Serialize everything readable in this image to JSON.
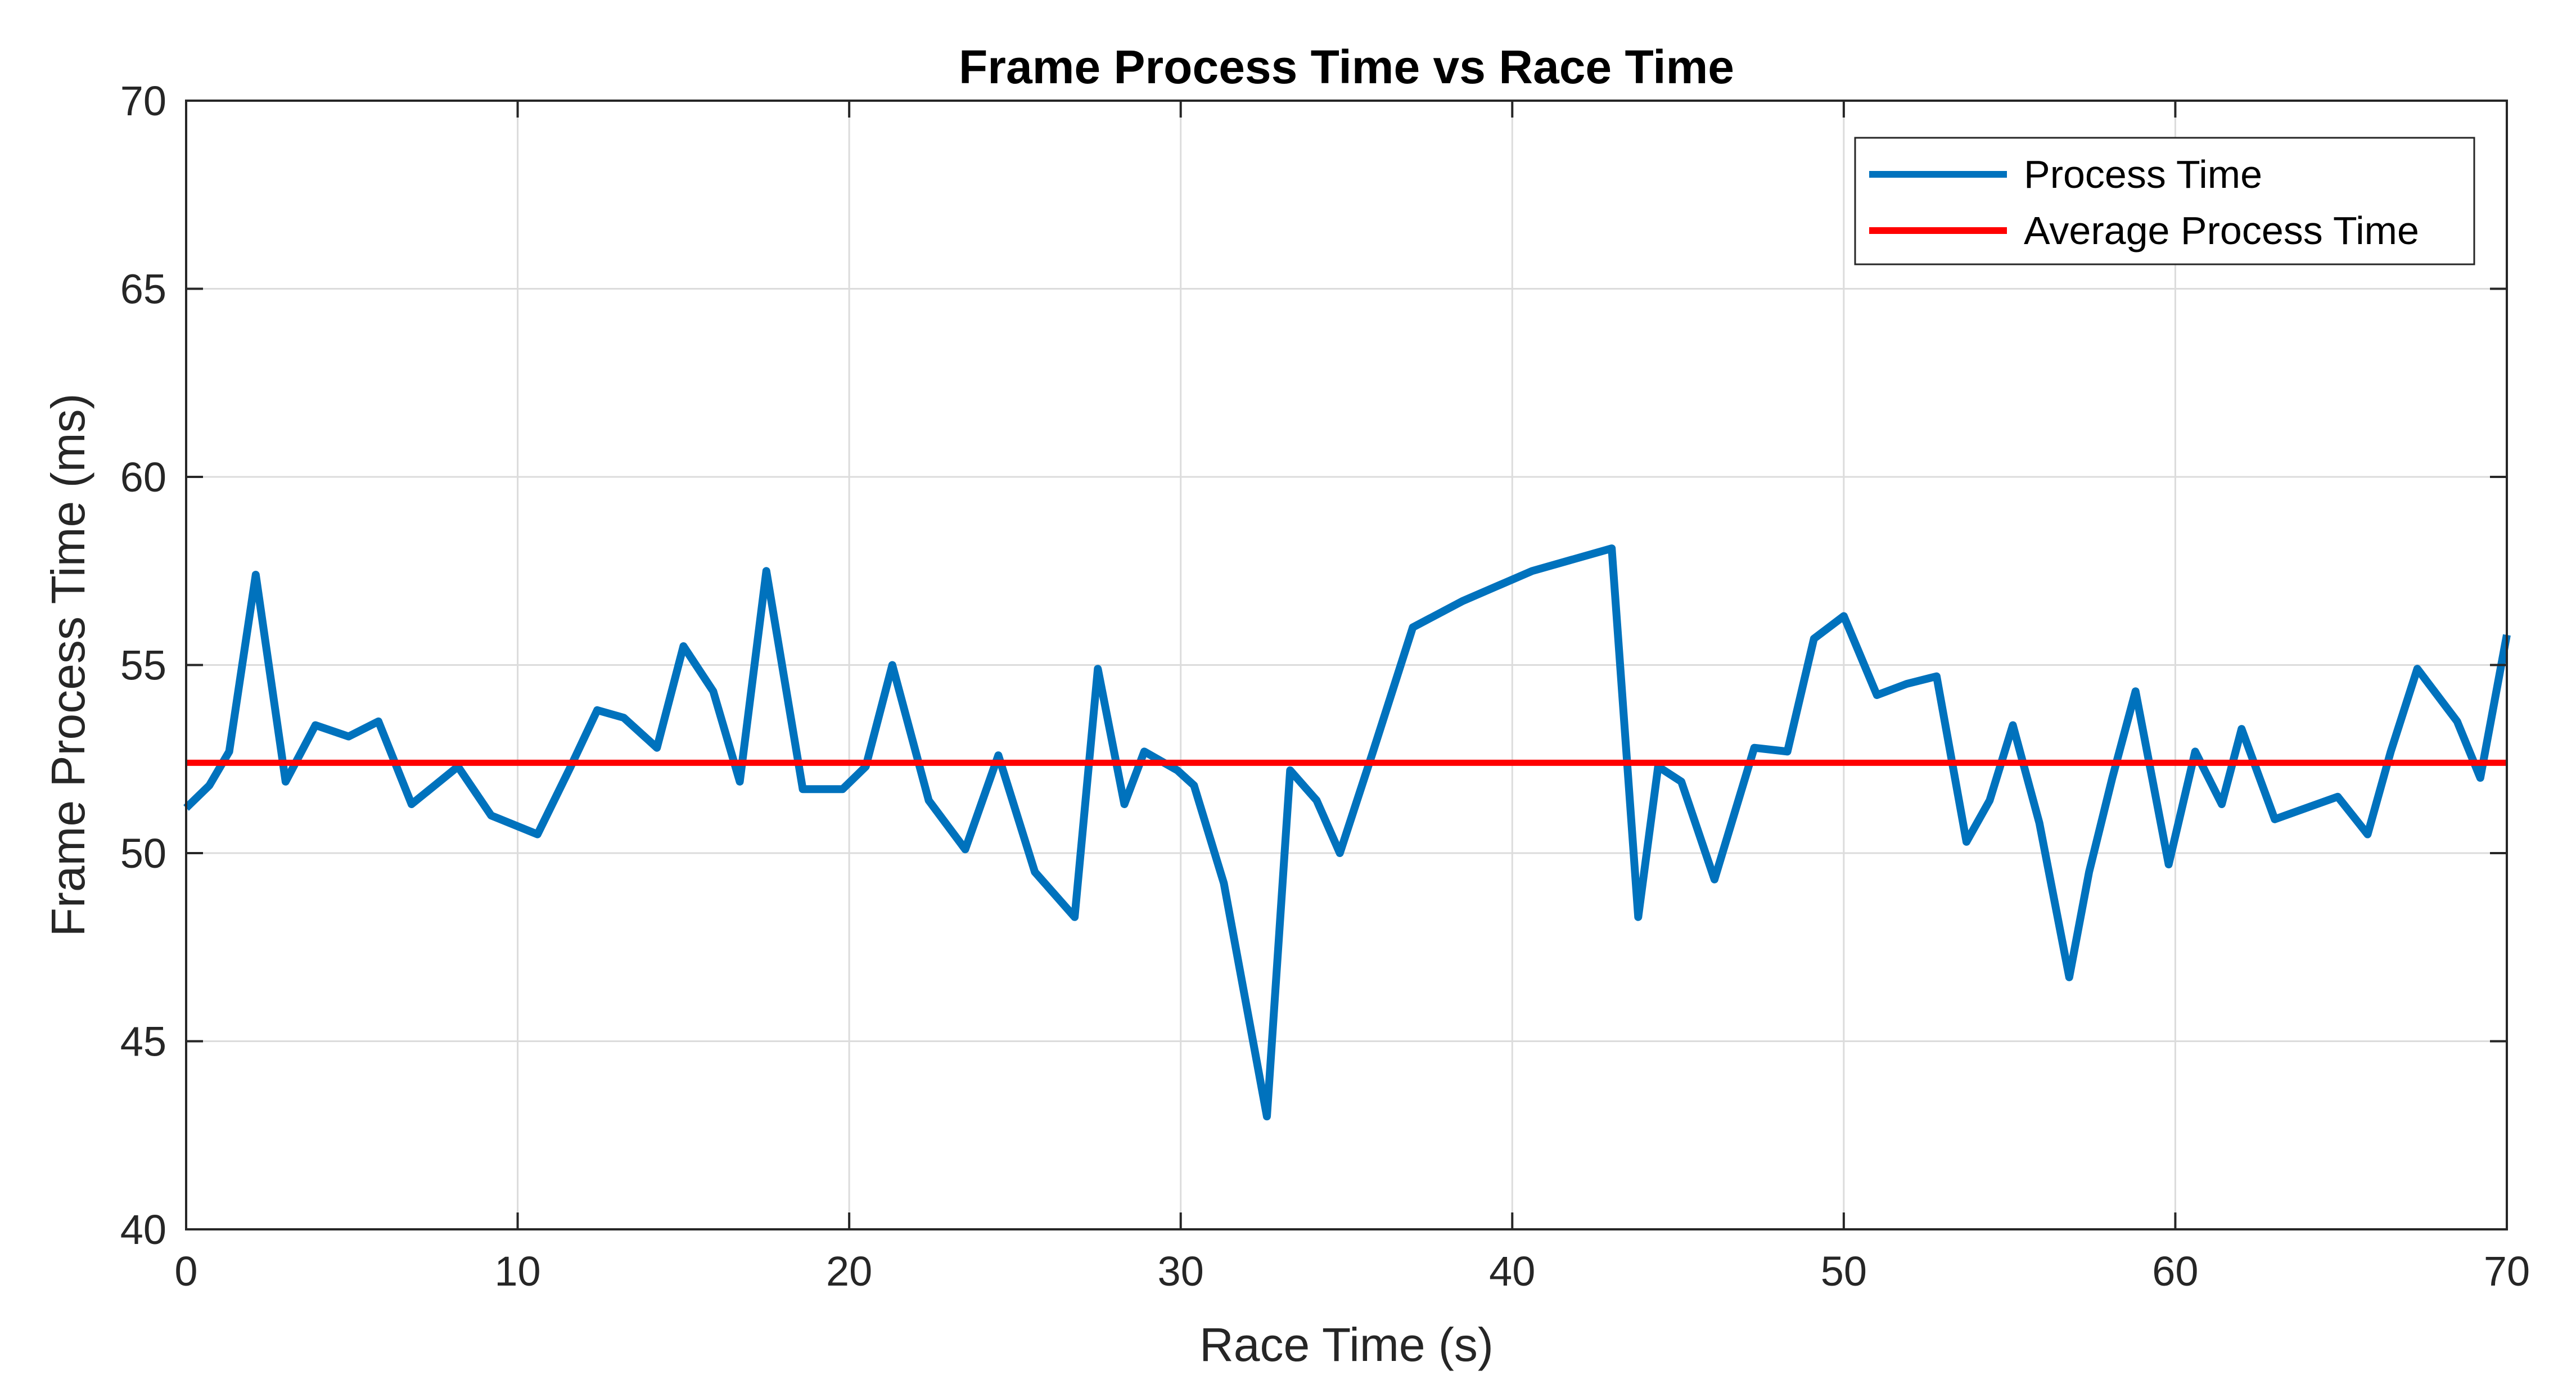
{
  "chart_data": {
    "type": "line",
    "title": "Frame Process Time vs Race Time",
    "xlabel": "Race Time (s)",
    "ylabel": "Frame Process Time (ms)",
    "xlim": [
      0,
      70
    ],
    "ylim": [
      40,
      70
    ],
    "xticks": [
      0,
      10,
      20,
      30,
      40,
      50,
      60,
      70
    ],
    "yticks": [
      40,
      45,
      50,
      55,
      60,
      65,
      70
    ],
    "xtick_labels": [
      "0",
      "10",
      "20",
      "30",
      "40",
      "50",
      "60",
      "70"
    ],
    "ytick_labels": [
      "40",
      "45",
      "50",
      "55",
      "60",
      "65",
      "70"
    ],
    "grid": true,
    "legend_position": "top-right",
    "series": [
      {
        "name": "Process Time",
        "color": "#0072BD",
        "x": [
          0,
          0.7,
          1.3,
          2.1,
          3.0,
          3.9,
          4.9,
          5.8,
          6.8,
          8.2,
          9.2,
          10.6,
          11.6,
          12.4,
          13.2,
          14.2,
          15.0,
          15.9,
          16.7,
          17.5,
          18.6,
          19.8,
          20.5,
          21.3,
          22.4,
          23.5,
          24.5,
          25.6,
          26.8,
          27.5,
          28.3,
          28.9,
          29.9,
          30.4,
          31.3,
          32.6,
          33.3,
          34.1,
          34.8,
          35.8,
          37.0,
          38.5,
          40.6,
          43.0,
          43.8,
          44.4,
          45.1,
          46.1,
          47.3,
          48.3,
          49.1,
          50.0,
          51.0,
          51.9,
          52.8,
          53.7,
          54.4,
          55.1,
          55.9,
          56.8,
          57.4,
          58.1,
          58.8,
          59.8,
          60.6,
          61.4,
          62.0,
          63.0,
          64.9,
          65.8,
          66.5,
          67.3,
          68.5,
          69.2,
          70.0
        ],
        "y": [
          51.2,
          51.8,
          52.7,
          57.4,
          51.9,
          53.4,
          53.1,
          53.5,
          51.3,
          52.3,
          51.0,
          50.5,
          52.3,
          53.8,
          53.6,
          52.8,
          55.5,
          54.3,
          51.9,
          57.5,
          51.7,
          51.7,
          52.3,
          55.0,
          51.4,
          50.1,
          52.6,
          49.5,
          48.3,
          54.9,
          51.3,
          52.7,
          52.2,
          51.8,
          49.2,
          43.0,
          52.2,
          51.4,
          50.0,
          52.7,
          56.0,
          56.7,
          57.5,
          58.1,
          48.3,
          52.3,
          51.9,
          49.3,
          52.8,
          52.7,
          55.7,
          56.3,
          54.2,
          54.5,
          54.7,
          50.3,
          51.4,
          53.4,
          50.8,
          46.7,
          49.5,
          52.0,
          54.3,
          49.7,
          52.7,
          51.3,
          53.3,
          50.9,
          51.5,
          50.5,
          52.7,
          54.9,
          53.5,
          52.0,
          55.8
        ]
      },
      {
        "name": "Average Process Time",
        "color": "#FF0000",
        "x": [
          0,
          70
        ],
        "y": [
          52.4,
          52.4
        ]
      }
    ]
  }
}
